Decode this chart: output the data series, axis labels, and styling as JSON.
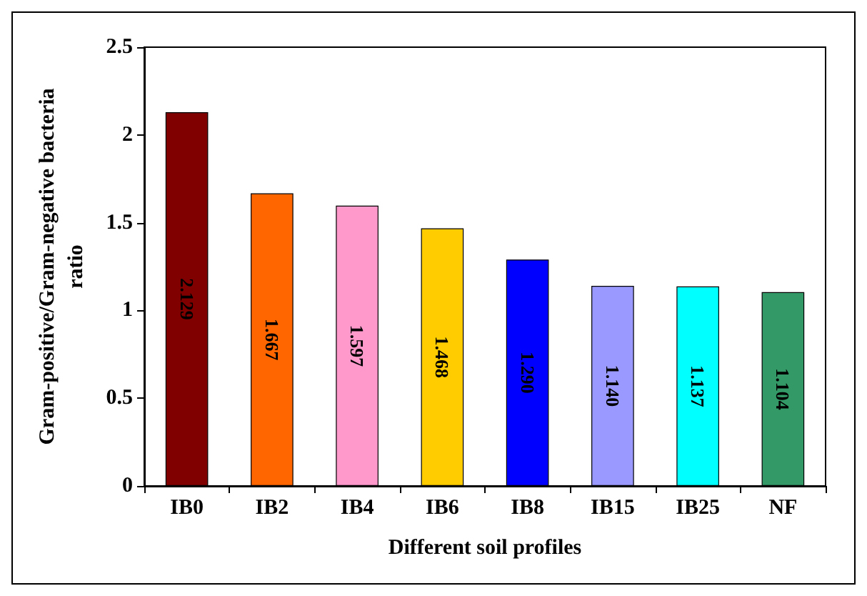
{
  "chart_data": {
    "type": "bar",
    "xlabel": "Different soil profiles",
    "ylabel": "Gram-positive/Gram-negative bacteria ratio",
    "categories": [
      "IB0",
      "IB2",
      "IB4",
      "IB6",
      "IB8",
      "IB15",
      "IB25",
      "NF"
    ],
    "values": [
      2.129,
      1.667,
      1.597,
      1.468,
      1.29,
      1.14,
      1.137,
      1.104
    ],
    "value_labels": [
      "2.129",
      "1.667",
      "1.597",
      "1.468",
      "1.290",
      "1.140",
      "1.137",
      "1.104"
    ],
    "colors": [
      "#800000",
      "#ff6600",
      "#ff99cc",
      "#ffcc00",
      "#0000ff",
      "#9999ff",
      "#00ffff",
      "#339966"
    ],
    "ylim": [
      0,
      2.5
    ],
    "yticks": [
      0,
      0.5,
      1,
      1.5,
      2,
      2.5
    ],
    "grid": false
  }
}
